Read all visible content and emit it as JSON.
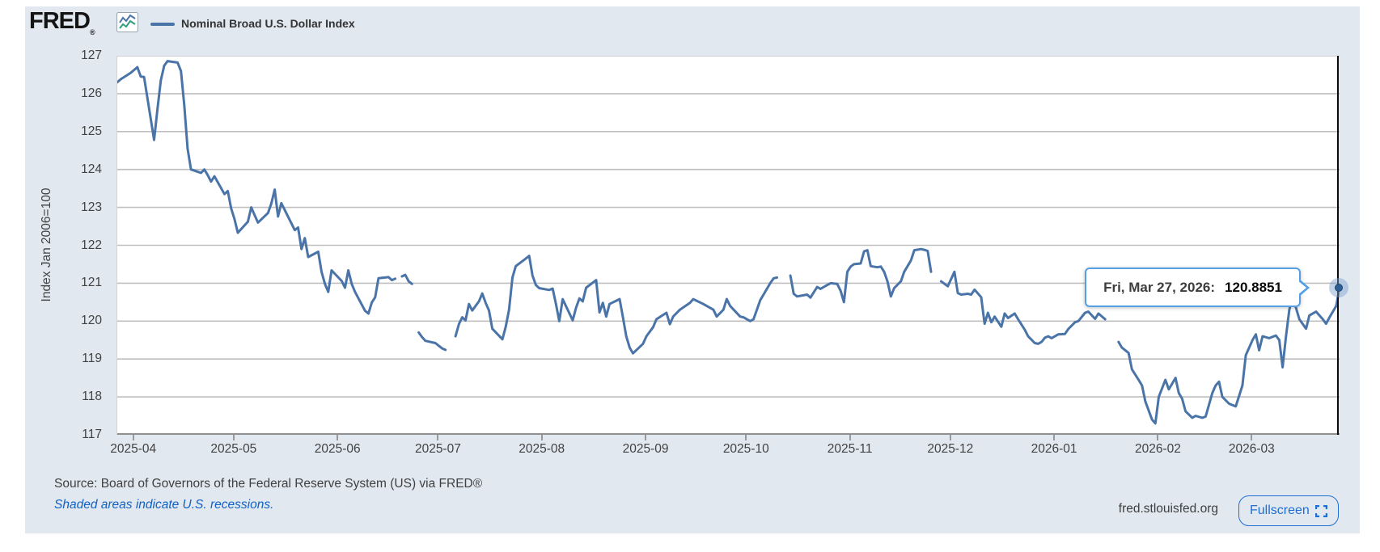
{
  "header": {
    "logo_text": "FRED",
    "logo_reg": "®",
    "legend_label": "Nominal Broad U.S. Dollar Index"
  },
  "tooltip": {
    "date_label": "Fri, Mar 27, 2026:",
    "value": "120.8851"
  },
  "footer": {
    "source_text": "Source: Board of Governors of the Federal Reserve System (US) via FRED®",
    "recessions_note": "Shaded areas indicate U.S. recessions.",
    "site_text": "fred.stlouisfed.org",
    "fullscreen_label": "Fullscreen"
  },
  "colors": {
    "line": "#4a74a8",
    "panel_bg": "#e1e8f0",
    "grid": "#bfbfbf",
    "grid_bottom": "#8f8f8f",
    "axis_text": "#424242",
    "tooltip_border": "#53a0e4",
    "link_blue": "#1261c4",
    "fullscreen_blue": "#1f6fd2",
    "crosshair": "#0b0b0b",
    "marker": "#2d5f93",
    "icon_blue": "#4a74a8",
    "icon_green": "#2e9e7e"
  },
  "chart_data": {
    "type": "line",
    "title": "Nominal Broad U.S. Dollar Index",
    "ylabel": "Index Jan 2006=100",
    "ylim": [
      117,
      127
    ],
    "grid": true,
    "legend_position": "top-left",
    "y_ticks": [
      117,
      118,
      119,
      120,
      121,
      122,
      123,
      124,
      125,
      126,
      127
    ],
    "x_range_days": 365,
    "x_ticks": [
      {
        "label": "2025-04",
        "day": 5
      },
      {
        "label": "2025-05",
        "day": 35
      },
      {
        "label": "2025-06",
        "day": 66
      },
      {
        "label": "2025-07",
        "day": 96
      },
      {
        "label": "2025-08",
        "day": 127
      },
      {
        "label": "2025-09",
        "day": 158
      },
      {
        "label": "2025-10",
        "day": 188
      },
      {
        "label": "2025-11",
        "day": 219
      },
      {
        "label": "2025-12",
        "day": 249
      },
      {
        "label": "2026-01",
        "day": 280
      },
      {
        "label": "2026-02",
        "day": 311
      },
      {
        "label": "2026-03",
        "day": 339
      }
    ],
    "last_point": {
      "day": 365,
      "value": 120.8851,
      "date": "Fri, Mar 27, 2026"
    },
    "segments": [
      [
        [
          0,
          126.3
        ],
        [
          1,
          126.38
        ],
        [
          4,
          126.55
        ],
        [
          6,
          126.7
        ],
        [
          7,
          126.45
        ],
        [
          8,
          126.44
        ],
        [
          11,
          124.78
        ],
        [
          12,
          125.6
        ],
        [
          13,
          126.35
        ],
        [
          14,
          126.74
        ],
        [
          15,
          126.86
        ],
        [
          18,
          126.82
        ],
        [
          19,
          126.6
        ],
        [
          20,
          125.7
        ],
        [
          21,
          124.55
        ],
        [
          22,
          124.0
        ],
        [
          25,
          123.91
        ],
        [
          26,
          124.0
        ],
        [
          27,
          123.85
        ],
        [
          28,
          123.68
        ],
        [
          29,
          123.82
        ],
        [
          32,
          123.35
        ],
        [
          33,
          123.43
        ],
        [
          34,
          122.97
        ],
        [
          35,
          122.69
        ],
        [
          36,
          122.33
        ],
        [
          39,
          122.62
        ],
        [
          40,
          123.0
        ],
        [
          41,
          122.8
        ],
        [
          42,
          122.6
        ],
        [
          45,
          122.85
        ],
        [
          46,
          123.1
        ],
        [
          47,
          123.47
        ],
        [
          48,
          122.76
        ],
        [
          49,
          123.11
        ],
        [
          53,
          122.4
        ],
        [
          54,
          122.47
        ],
        [
          55,
          121.9
        ],
        [
          56,
          122.19
        ],
        [
          57,
          121.69
        ],
        [
          60,
          121.83
        ],
        [
          61,
          121.3
        ],
        [
          62,
          120.98
        ],
        [
          63,
          120.77
        ],
        [
          64,
          121.34
        ],
        [
          67,
          121.06
        ],
        [
          68,
          120.88
        ],
        [
          69,
          121.34
        ],
        [
          70,
          120.98
        ],
        [
          71,
          120.77
        ],
        [
          74,
          120.27
        ],
        [
          75,
          120.2
        ],
        [
          76,
          120.49
        ],
        [
          77,
          120.63
        ],
        [
          78,
          121.13
        ],
        [
          81,
          121.16
        ],
        [
          82,
          121.08
        ],
        [
          83,
          121.12
        ]
      ],
      [
        [
          85,
          121.18
        ],
        [
          86,
          121.22
        ],
        [
          87,
          121.05
        ],
        [
          88,
          120.98
        ]
      ],
      [
        [
          90,
          119.7
        ],
        [
          91,
          119.58
        ],
        [
          92,
          119.48
        ],
        [
          95,
          119.42
        ],
        [
          96,
          119.35
        ],
        [
          97,
          119.28
        ],
        [
          98,
          119.24
        ]
      ],
      [
        [
          101,
          119.6
        ],
        [
          102,
          119.92
        ],
        [
          103,
          120.1
        ],
        [
          104,
          120.02
        ],
        [
          105,
          120.45
        ],
        [
          106,
          120.28
        ],
        [
          108,
          120.52
        ],
        [
          109,
          120.73
        ],
        [
          110,
          120.48
        ],
        [
          111,
          120.28
        ],
        [
          112,
          119.8
        ],
        [
          115,
          119.52
        ],
        [
          116,
          119.85
        ],
        [
          117,
          120.3
        ],
        [
          118,
          121.15
        ],
        [
          119,
          121.45
        ],
        [
          122,
          121.65
        ],
        [
          123,
          121.72
        ],
        [
          124,
          121.2
        ],
        [
          125,
          120.95
        ],
        [
          126,
          120.87
        ],
        [
          129,
          120.82
        ],
        [
          130,
          120.86
        ],
        [
          131,
          120.45
        ],
        [
          132,
          120.0
        ],
        [
          133,
          120.58
        ],
        [
          136,
          120.02
        ],
        [
          137,
          120.35
        ],
        [
          138,
          120.6
        ],
        [
          139,
          120.52
        ],
        [
          140,
          120.88
        ],
        [
          143,
          121.08
        ],
        [
          144,
          120.23
        ],
        [
          145,
          120.48
        ],
        [
          146,
          120.12
        ],
        [
          147,
          120.45
        ],
        [
          150,
          120.58
        ],
        [
          151,
          120.1
        ],
        [
          152,
          119.6
        ],
        [
          153,
          119.3
        ],
        [
          154,
          119.15
        ],
        [
          157,
          119.4
        ],
        [
          158,
          119.6
        ],
        [
          160,
          119.84
        ],
        [
          161,
          120.05
        ],
        [
          164,
          120.22
        ],
        [
          165,
          119.92
        ],
        [
          166,
          120.12
        ],
        [
          168,
          120.3
        ],
        [
          171,
          120.48
        ],
        [
          172,
          120.58
        ],
        [
          175,
          120.45
        ],
        [
          178,
          120.3
        ],
        [
          179,
          120.12
        ],
        [
          181,
          120.3
        ],
        [
          182,
          120.58
        ],
        [
          183,
          120.4
        ],
        [
          186,
          120.12
        ],
        [
          187,
          120.1
        ],
        [
          189,
          120.0
        ],
        [
          190,
          120.05
        ],
        [
          191,
          120.3
        ],
        [
          192,
          120.55
        ],
        [
          195,
          121.0
        ],
        [
          196,
          121.13
        ],
        [
          197,
          121.15
        ]
      ],
      [
        [
          201,
          121.2
        ],
        [
          202,
          120.72
        ],
        [
          203,
          120.65
        ],
        [
          206,
          120.7
        ],
        [
          207,
          120.62
        ],
        [
          209,
          120.9
        ],
        [
          210,
          120.85
        ],
        [
          212,
          120.95
        ],
        [
          213,
          121.0
        ],
        [
          215,
          120.98
        ],
        [
          216,
          120.8
        ],
        [
          217,
          120.5
        ],
        [
          218,
          121.3
        ],
        [
          219,
          121.44
        ],
        [
          220,
          121.5
        ],
        [
          222,
          121.52
        ],
        [
          223,
          121.84
        ],
        [
          224,
          121.87
        ],
        [
          225,
          121.45
        ],
        [
          227,
          121.42
        ],
        [
          228,
          121.44
        ],
        [
          229,
          121.3
        ],
        [
          230,
          121.05
        ],
        [
          231,
          120.65
        ],
        [
          232,
          120.87
        ],
        [
          234,
          121.05
        ],
        [
          235,
          121.3
        ],
        [
          237,
          121.6
        ],
        [
          238,
          121.87
        ],
        [
          240,
          121.9
        ],
        [
          241,
          121.88
        ],
        [
          242,
          121.85
        ],
        [
          243,
          121.3
        ]
      ],
      [
        [
          246,
          121.05
        ],
        [
          248,
          120.92
        ],
        [
          250,
          121.3
        ],
        [
          251,
          120.74
        ],
        [
          252,
          120.7
        ],
        [
          254,
          120.72
        ],
        [
          255,
          120.7
        ],
        [
          256,
          120.83
        ],
        [
          258,
          120.63
        ],
        [
          259,
          119.93
        ],
        [
          260,
          120.22
        ],
        [
          261,
          119.97
        ],
        [
          262,
          120.12
        ],
        [
          264,
          119.85
        ],
        [
          265,
          120.2
        ],
        [
          266,
          120.08
        ],
        [
          268,
          120.2
        ],
        [
          269,
          120.05
        ],
        [
          271,
          119.77
        ],
        [
          272,
          119.6
        ],
        [
          274,
          119.42
        ],
        [
          275,
          119.4
        ],
        [
          276,
          119.45
        ],
        [
          277,
          119.56
        ],
        [
          278,
          119.6
        ],
        [
          279,
          119.55
        ],
        [
          281,
          119.65
        ],
        [
          283,
          119.66
        ],
        [
          284,
          119.79
        ],
        [
          286,
          119.97
        ],
        [
          287,
          120.0
        ],
        [
          289,
          120.22
        ],
        [
          290,
          120.25
        ],
        [
          292,
          120.06
        ],
        [
          293,
          120.2
        ],
        [
          295,
          120.05
        ]
      ],
      [
        [
          299,
          119.45
        ],
        [
          300,
          119.3
        ],
        [
          302,
          119.16
        ],
        [
          303,
          118.73
        ],
        [
          305,
          118.45
        ],
        [
          306,
          118.3
        ],
        [
          307,
          117.88
        ],
        [
          309,
          117.4
        ],
        [
          310,
          117.3
        ],
        [
          311,
          118.0
        ],
        [
          313,
          118.45
        ],
        [
          314,
          118.2
        ],
        [
          316,
          118.5
        ],
        [
          317,
          118.1
        ],
        [
          318,
          117.95
        ],
        [
          319,
          117.62
        ],
        [
          321,
          117.45
        ],
        [
          322,
          117.5
        ],
        [
          324,
          117.45
        ],
        [
          325,
          117.48
        ],
        [
          327,
          118.1
        ],
        [
          328,
          118.3
        ],
        [
          329,
          118.4
        ],
        [
          330,
          118.0
        ],
        [
          332,
          117.82
        ],
        [
          334,
          117.75
        ],
        [
          336,
          118.3
        ],
        [
          337,
          119.1
        ],
        [
          339,
          119.5
        ],
        [
          340,
          119.65
        ],
        [
          341,
          119.23
        ],
        [
          342,
          119.6
        ],
        [
          344,
          119.55
        ],
        [
          346,
          119.62
        ],
        [
          347,
          119.5
        ],
        [
          348,
          118.78
        ],
        [
          349,
          119.6
        ],
        [
          350,
          120.3
        ],
        [
          351,
          120.65
        ],
        [
          353,
          120.05
        ],
        [
          355,
          119.8
        ],
        [
          356,
          120.15
        ],
        [
          358,
          120.25
        ],
        [
          360,
          120.05
        ],
        [
          361,
          119.93
        ],
        [
          362,
          120.1
        ],
        [
          364,
          120.4
        ],
        [
          365,
          120.8851
        ]
      ]
    ]
  }
}
